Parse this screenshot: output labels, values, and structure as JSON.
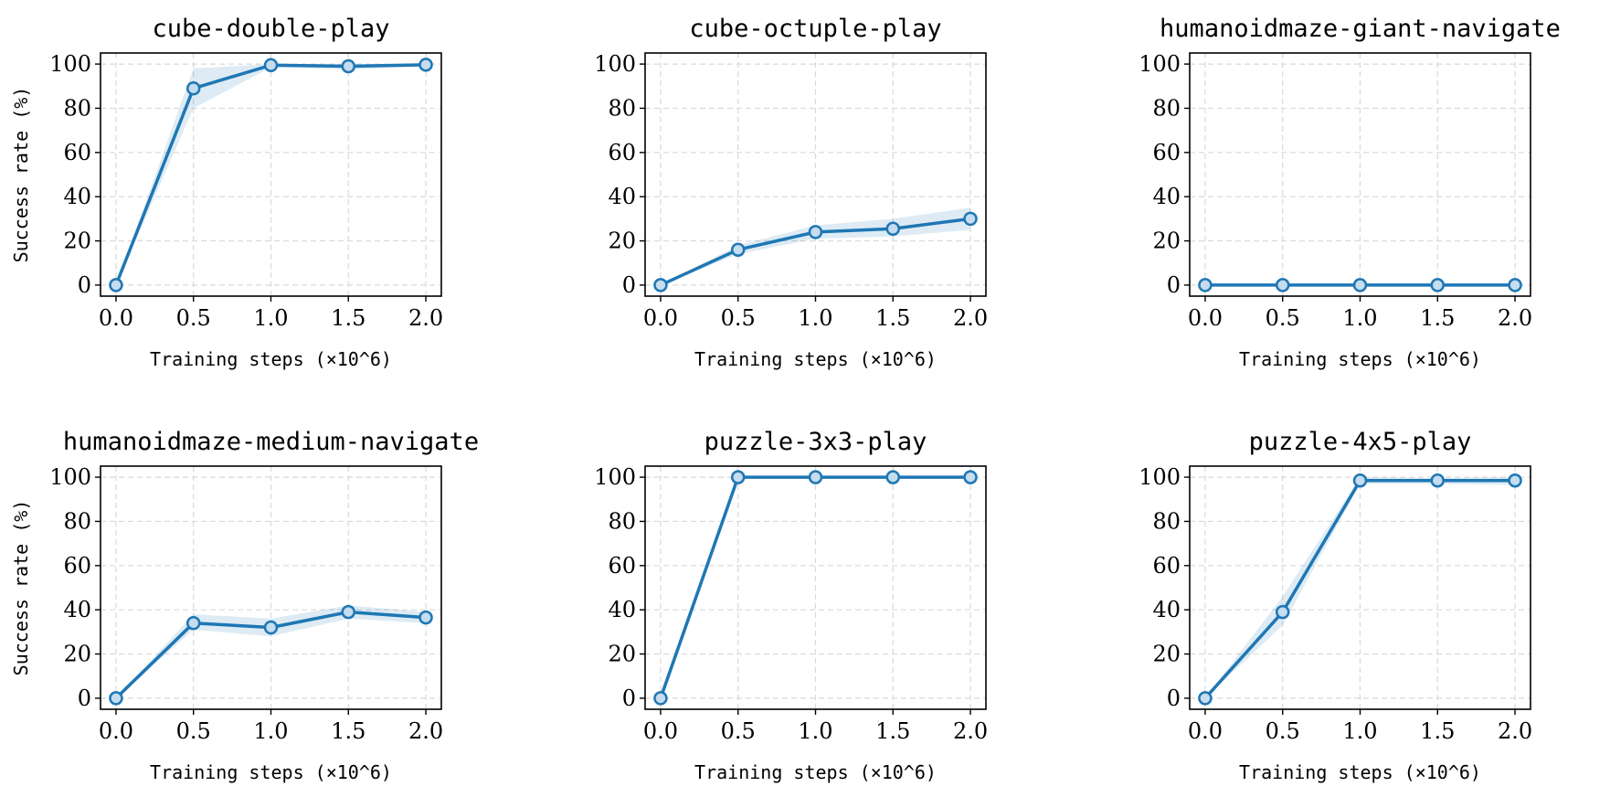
{
  "chart_data": [
    {
      "type": "line",
      "title": "cube-double-play",
      "xlabel": "Training steps (×10^6)",
      "ylabel": "Success rate (%)",
      "x": [
        0.0,
        0.5,
        1.0,
        1.5,
        2.0
      ],
      "values": [
        0,
        89,
        99.5,
        99,
        99.7
      ],
      "band_lower": [
        0,
        80,
        98.5,
        97.5,
        99
      ],
      "band_upper": [
        0,
        98,
        100,
        100,
        100
      ],
      "xticks": [
        "0.0",
        "0.5",
        "1.0",
        "1.5",
        "2.0"
      ],
      "yticks": [
        "0",
        "20",
        "40",
        "60",
        "80",
        "100"
      ],
      "xlim": [
        -0.1,
        2.1
      ],
      "ylim": [
        -5,
        105
      ],
      "grid": true
    },
    {
      "type": "line",
      "title": "cube-octuple-play",
      "xlabel": "Training steps (×10^6)",
      "ylabel": "",
      "x": [
        0.0,
        0.5,
        1.0,
        1.5,
        2.0
      ],
      "values": [
        0,
        16,
        24,
        25.5,
        30
      ],
      "band_lower": [
        0,
        14,
        21,
        22,
        25
      ],
      "band_upper": [
        0,
        18,
        27,
        30,
        35
      ],
      "xticks": [
        "0.0",
        "0.5",
        "1.0",
        "1.5",
        "2.0"
      ],
      "yticks": [
        "0",
        "20",
        "40",
        "60",
        "80",
        "100"
      ],
      "xlim": [
        -0.1,
        2.1
      ],
      "ylim": [
        -5,
        105
      ],
      "grid": true
    },
    {
      "type": "line",
      "title": "humanoidmaze-giant-navigate",
      "xlabel": "Training steps (×10^6)",
      "ylabel": "",
      "x": [
        0.0,
        0.5,
        1.0,
        1.5,
        2.0
      ],
      "values": [
        0,
        0,
        0,
        0,
        0
      ],
      "band_lower": [
        0,
        0,
        0,
        0,
        0
      ],
      "band_upper": [
        0,
        0,
        0,
        0,
        0
      ],
      "xticks": [
        "0.0",
        "0.5",
        "1.0",
        "1.5",
        "2.0"
      ],
      "yticks": [
        "0",
        "20",
        "40",
        "60",
        "80",
        "100"
      ],
      "xlim": [
        -0.1,
        2.1
      ],
      "ylim": [
        -5,
        105
      ],
      "grid": true
    },
    {
      "type": "line",
      "title": "humanoidmaze-medium-navigate",
      "xlabel": "Training steps (×10^6)",
      "ylabel": "Success rate (%)",
      "x": [
        0.0,
        0.5,
        1.0,
        1.5,
        2.0
      ],
      "values": [
        0,
        34,
        32,
        39,
        36.5
      ],
      "band_lower": [
        0,
        31,
        28,
        36,
        34
      ],
      "band_upper": [
        0,
        38,
        36,
        42,
        39
      ],
      "xticks": [
        "0.0",
        "0.5",
        "1.0",
        "1.5",
        "2.0"
      ],
      "yticks": [
        "0",
        "20",
        "40",
        "60",
        "80",
        "100"
      ],
      "xlim": [
        -0.1,
        2.1
      ],
      "ylim": [
        -5,
        105
      ],
      "grid": true
    },
    {
      "type": "line",
      "title": "puzzle-3x3-play",
      "xlabel": "Training steps (×10^6)",
      "ylabel": "",
      "x": [
        0.0,
        0.5,
        1.0,
        1.5,
        2.0
      ],
      "values": [
        0,
        100,
        100,
        100,
        100
      ],
      "band_lower": [
        0,
        100,
        100,
        100,
        100
      ],
      "band_upper": [
        0,
        100,
        100,
        100,
        100
      ],
      "xticks": [
        "0.0",
        "0.5",
        "1.0",
        "1.5",
        "2.0"
      ],
      "yticks": [
        "0",
        "20",
        "40",
        "60",
        "80",
        "100"
      ],
      "xlim": [
        -0.1,
        2.1
      ],
      "ylim": [
        -5,
        105
      ],
      "grid": true
    },
    {
      "type": "line",
      "title": "puzzle-4x5-play",
      "xlabel": "Training steps (×10^6)",
      "ylabel": "",
      "x": [
        0.0,
        0.5,
        1.0,
        1.5,
        2.0
      ],
      "values": [
        0,
        39,
        98.5,
        98.5,
        98.5
      ],
      "band_lower": [
        0,
        33,
        97,
        97,
        96.5
      ],
      "band_upper": [
        0,
        46,
        100,
        99.5,
        100
      ],
      "xticks": [
        "0.0",
        "0.5",
        "1.0",
        "1.5",
        "2.0"
      ],
      "yticks": [
        "0",
        "20",
        "40",
        "60",
        "80",
        "100"
      ],
      "xlim": [
        -0.1,
        2.1
      ],
      "ylim": [
        -5,
        105
      ],
      "grid": true
    }
  ],
  "colors": {
    "line": "#1f77b4",
    "marker_fill": "#c6dcef",
    "band": "#1f77b4",
    "grid": "#d9d9d9"
  }
}
